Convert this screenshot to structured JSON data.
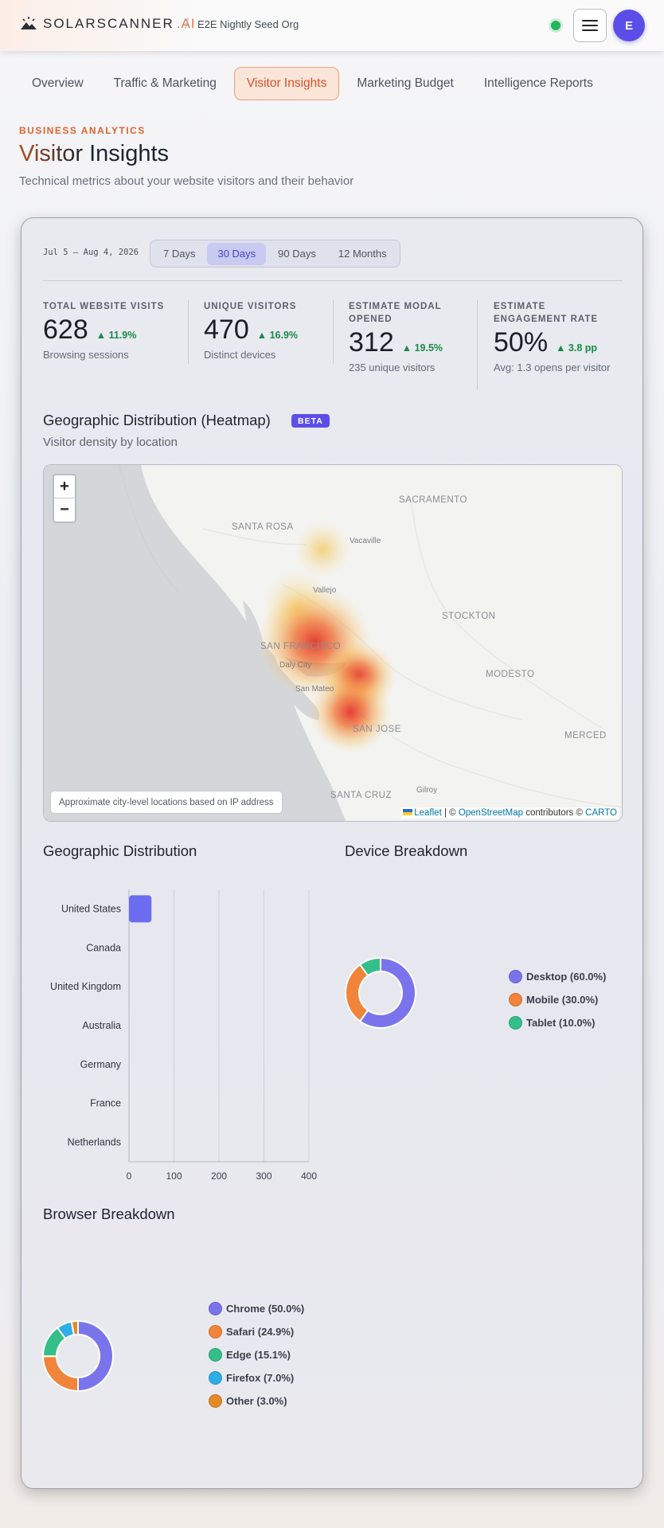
{
  "header": {
    "logo_text": "SOLARSCANNER",
    "logo_suffix": ".AI",
    "separator": "/",
    "org_name": "E2E Nightly Seed Org",
    "avatar_initial": "E"
  },
  "tabs": [
    {
      "label": "Overview",
      "active": false
    },
    {
      "label": "Traffic & Marketing",
      "active": false
    },
    {
      "label": "Visitor Insights",
      "active": true
    },
    {
      "label": "Marketing Budget",
      "active": false
    },
    {
      "label": "Intelligence Reports",
      "active": false
    }
  ],
  "page": {
    "eyebrow": "BUSINESS ANALYTICS",
    "title_a": "Visitor",
    "title_b": " Insights",
    "subtitle": "Technical metrics about your website visitors and their behavior"
  },
  "filters": {
    "date_range": "Jul 5 – Aug 4, 2026",
    "periods": [
      "7 Days",
      "30 Days",
      "90 Days",
      "12 Months"
    ],
    "active_period": "30 Days"
  },
  "kpis": [
    {
      "label": "TOTAL WEBSITE VISITS",
      "value": "628",
      "delta": "11.9%",
      "note": "Browsing sessions"
    },
    {
      "label": "UNIQUE VISITORS",
      "value": "470",
      "delta": "16.9%",
      "note": "Distinct devices"
    },
    {
      "label": "ESTIMATE MODAL OPENED",
      "value": "312",
      "delta": "19.5%",
      "note": "235 unique visitors"
    },
    {
      "label": "ESTIMATE ENGAGEMENT RATE",
      "value": "50%",
      "delta": "3.8 pp",
      "note": "Avg: 1.3 opens per visitor"
    }
  ],
  "heatmap": {
    "title": "Geographic Distribution (Heatmap)",
    "badge": "BETA",
    "subtitle": "Visitor density by location",
    "zoom_in": "+",
    "zoom_out": "−",
    "note": "Approximate city-level locations based on IP address",
    "attribution": {
      "leaflet": "Leaflet",
      "sep": " | © ",
      "osm": "OpenStreetMap",
      "mid": " contributors © ",
      "carto": "CARTO"
    },
    "places": [
      "SACRAMENTO",
      "SANTA ROSA",
      "Vacaville",
      "Vallejo",
      "STOCKTON",
      "SAN FRANCISCO",
      "Daly City",
      "MODESTO",
      "San Mateo",
      "SAN JOSE",
      "MERCED",
      "Gilroy",
      "SANTA CRUZ"
    ]
  },
  "geo_chart": {
    "title": "Geographic Distribution"
  },
  "device_chart": {
    "title": "Device Breakdown"
  },
  "browser_chart": {
    "title": "Browser Breakdown"
  },
  "chart_data": [
    {
      "type": "bar",
      "orientation": "horizontal",
      "categories": [
        "United States",
        "Canada",
        "United Kingdom",
        "Australia",
        "Germany",
        "France",
        "Netherlands"
      ],
      "values": [
        50,
        0,
        0,
        0,
        0,
        0,
        0
      ],
      "xlim": [
        0,
        400
      ],
      "xticks": [
        "0",
        "100",
        "200",
        "300",
        "400"
      ],
      "color": "#6c6cf0",
      "grid": true
    },
    {
      "type": "pie",
      "variant": "donut",
      "labels": [
        "Desktop",
        "Mobile",
        "Tablet"
      ],
      "values": [
        60.0,
        30.0,
        10.0
      ],
      "legend": [
        "Desktop (60.0%)",
        "Mobile (30.0%)",
        "Tablet (10.0%)"
      ],
      "colors": [
        "#7a74ec",
        "#f0843a",
        "#34be8a"
      ],
      "legend_position": "right"
    },
    {
      "type": "pie",
      "variant": "donut",
      "labels": [
        "Chrome",
        "Safari",
        "Edge",
        "Firefox",
        "Other"
      ],
      "values": [
        50.0,
        24.9,
        15.1,
        7.0,
        3.0
      ],
      "legend": [
        "Chrome (50.0%)",
        "Safari (24.9%)",
        "Edge (15.1%)",
        "Firefox (7.0%)",
        "Other (3.0%)"
      ],
      "colors": [
        "#7a74ec",
        "#f0843a",
        "#34be8a",
        "#2eaee6",
        "#e38a26"
      ],
      "legend_position": "right"
    }
  ]
}
